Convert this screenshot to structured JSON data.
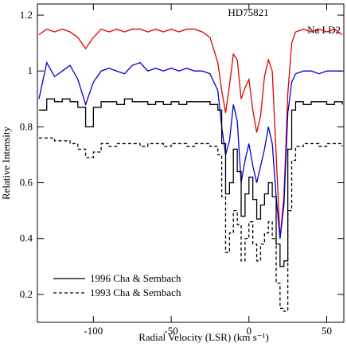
{
  "chart_data": {
    "type": "line",
    "title": "HD75821",
    "annotation": "Na I D2",
    "x_label": "Radial Velocity (LSR) (km s⁻¹)",
    "y_label": "Relative Intensity",
    "xlim": [
      -136,
      61
    ],
    "ylim": [
      0.1,
      1.24
    ],
    "xticks": [
      -100,
      -50,
      0,
      50
    ],
    "yticks": [
      0.2,
      0.4,
      0.6,
      0.8,
      1,
      1.2
    ],
    "legend": "lower left",
    "x": [
      -135,
      -130,
      -125,
      -120,
      -115,
      -110,
      -105,
      -100,
      -95,
      -90,
      -85,
      -80,
      -75,
      -70,
      -65,
      -60,
      -55,
      -50,
      -45,
      -40,
      -35,
      -30,
      -25,
      -20,
      -17.5,
      -15,
      -12.5,
      -10,
      -7.5,
      -5,
      -2.5,
      0,
      2.5,
      5,
      7.5,
      10,
      12.5,
      15,
      17.5,
      20,
      22.5,
      25,
      27.5,
      30,
      35,
      40,
      45,
      50,
      55,
      60
    ],
    "series": [
      {
        "color": "#e00000",
        "steps": false,
        "dashed": false,
        "values": [
          1.13,
          1.15,
          1.14,
          1.15,
          1.14,
          1.12,
          1.08,
          1.12,
          1.15,
          1.14,
          1.15,
          1.14,
          1.15,
          1.15,
          1.14,
          1.15,
          1.14,
          1.15,
          1.14,
          1.15,
          1.15,
          1.14,
          1.12,
          1.03,
          0.93,
          0.85,
          0.95,
          1.06,
          1.04,
          0.9,
          0.94,
          0.97,
          0.86,
          0.78,
          0.84,
          0.98,
          1.04,
          1.0,
          0.7,
          0.4,
          0.55,
          0.92,
          1.1,
          1.14,
          1.15,
          1.14,
          1.15,
          1.14,
          1.15,
          1.13
        ]
      },
      {
        "color": "#0000d0",
        "steps": false,
        "dashed": false,
        "values": [
          0.9,
          1.03,
          0.98,
          1.0,
          1.02,
          0.97,
          0.88,
          0.96,
          1.0,
          1.01,
          1.0,
          0.99,
          1.02,
          1.03,
          1.0,
          1.01,
          1.0,
          1.01,
          1.0,
          1.01,
          1.0,
          1.0,
          0.99,
          0.93,
          0.8,
          0.7,
          0.75,
          0.88,
          0.82,
          0.6,
          0.68,
          0.74,
          0.66,
          0.6,
          0.66,
          0.72,
          0.8,
          0.74,
          0.55,
          0.4,
          0.52,
          0.85,
          0.96,
          0.99,
          1.0,
          1.0,
          0.99,
          1.0,
          1.0,
          1.0
        ]
      },
      {
        "name": "1996 Cha & Sembach",
        "color": "#000000",
        "steps": true,
        "dashed": false,
        "values": [
          0.86,
          0.9,
          0.89,
          0.9,
          0.89,
          0.87,
          0.8,
          0.87,
          0.89,
          0.89,
          0.88,
          0.9,
          0.89,
          0.89,
          0.88,
          0.89,
          0.88,
          0.89,
          0.88,
          0.89,
          0.89,
          0.89,
          0.88,
          0.86,
          0.74,
          0.56,
          0.6,
          0.72,
          0.64,
          0.48,
          0.56,
          0.62,
          0.54,
          0.47,
          0.52,
          0.56,
          0.6,
          0.55,
          0.38,
          0.3,
          0.32,
          0.72,
          0.86,
          0.89,
          0.88,
          0.89,
          0.89,
          0.88,
          0.89,
          0.88
        ]
      },
      {
        "name": "1993 Cha & Sembach",
        "color": "#000000",
        "steps": true,
        "dashed": true,
        "values": [
          0.76,
          0.76,
          0.75,
          0.75,
          0.74,
          0.72,
          0.69,
          0.71,
          0.74,
          0.73,
          0.74,
          0.74,
          0.74,
          0.73,
          0.74,
          0.74,
          0.73,
          0.74,
          0.74,
          0.73,
          0.74,
          0.74,
          0.73,
          0.7,
          0.55,
          0.35,
          0.42,
          0.5,
          0.45,
          0.32,
          0.4,
          0.46,
          0.38,
          0.32,
          0.38,
          0.42,
          0.46,
          0.4,
          0.24,
          0.15,
          0.14,
          0.5,
          0.68,
          0.73,
          0.74,
          0.74,
          0.73,
          0.74,
          0.74,
          0.73
        ]
      }
    ]
  }
}
